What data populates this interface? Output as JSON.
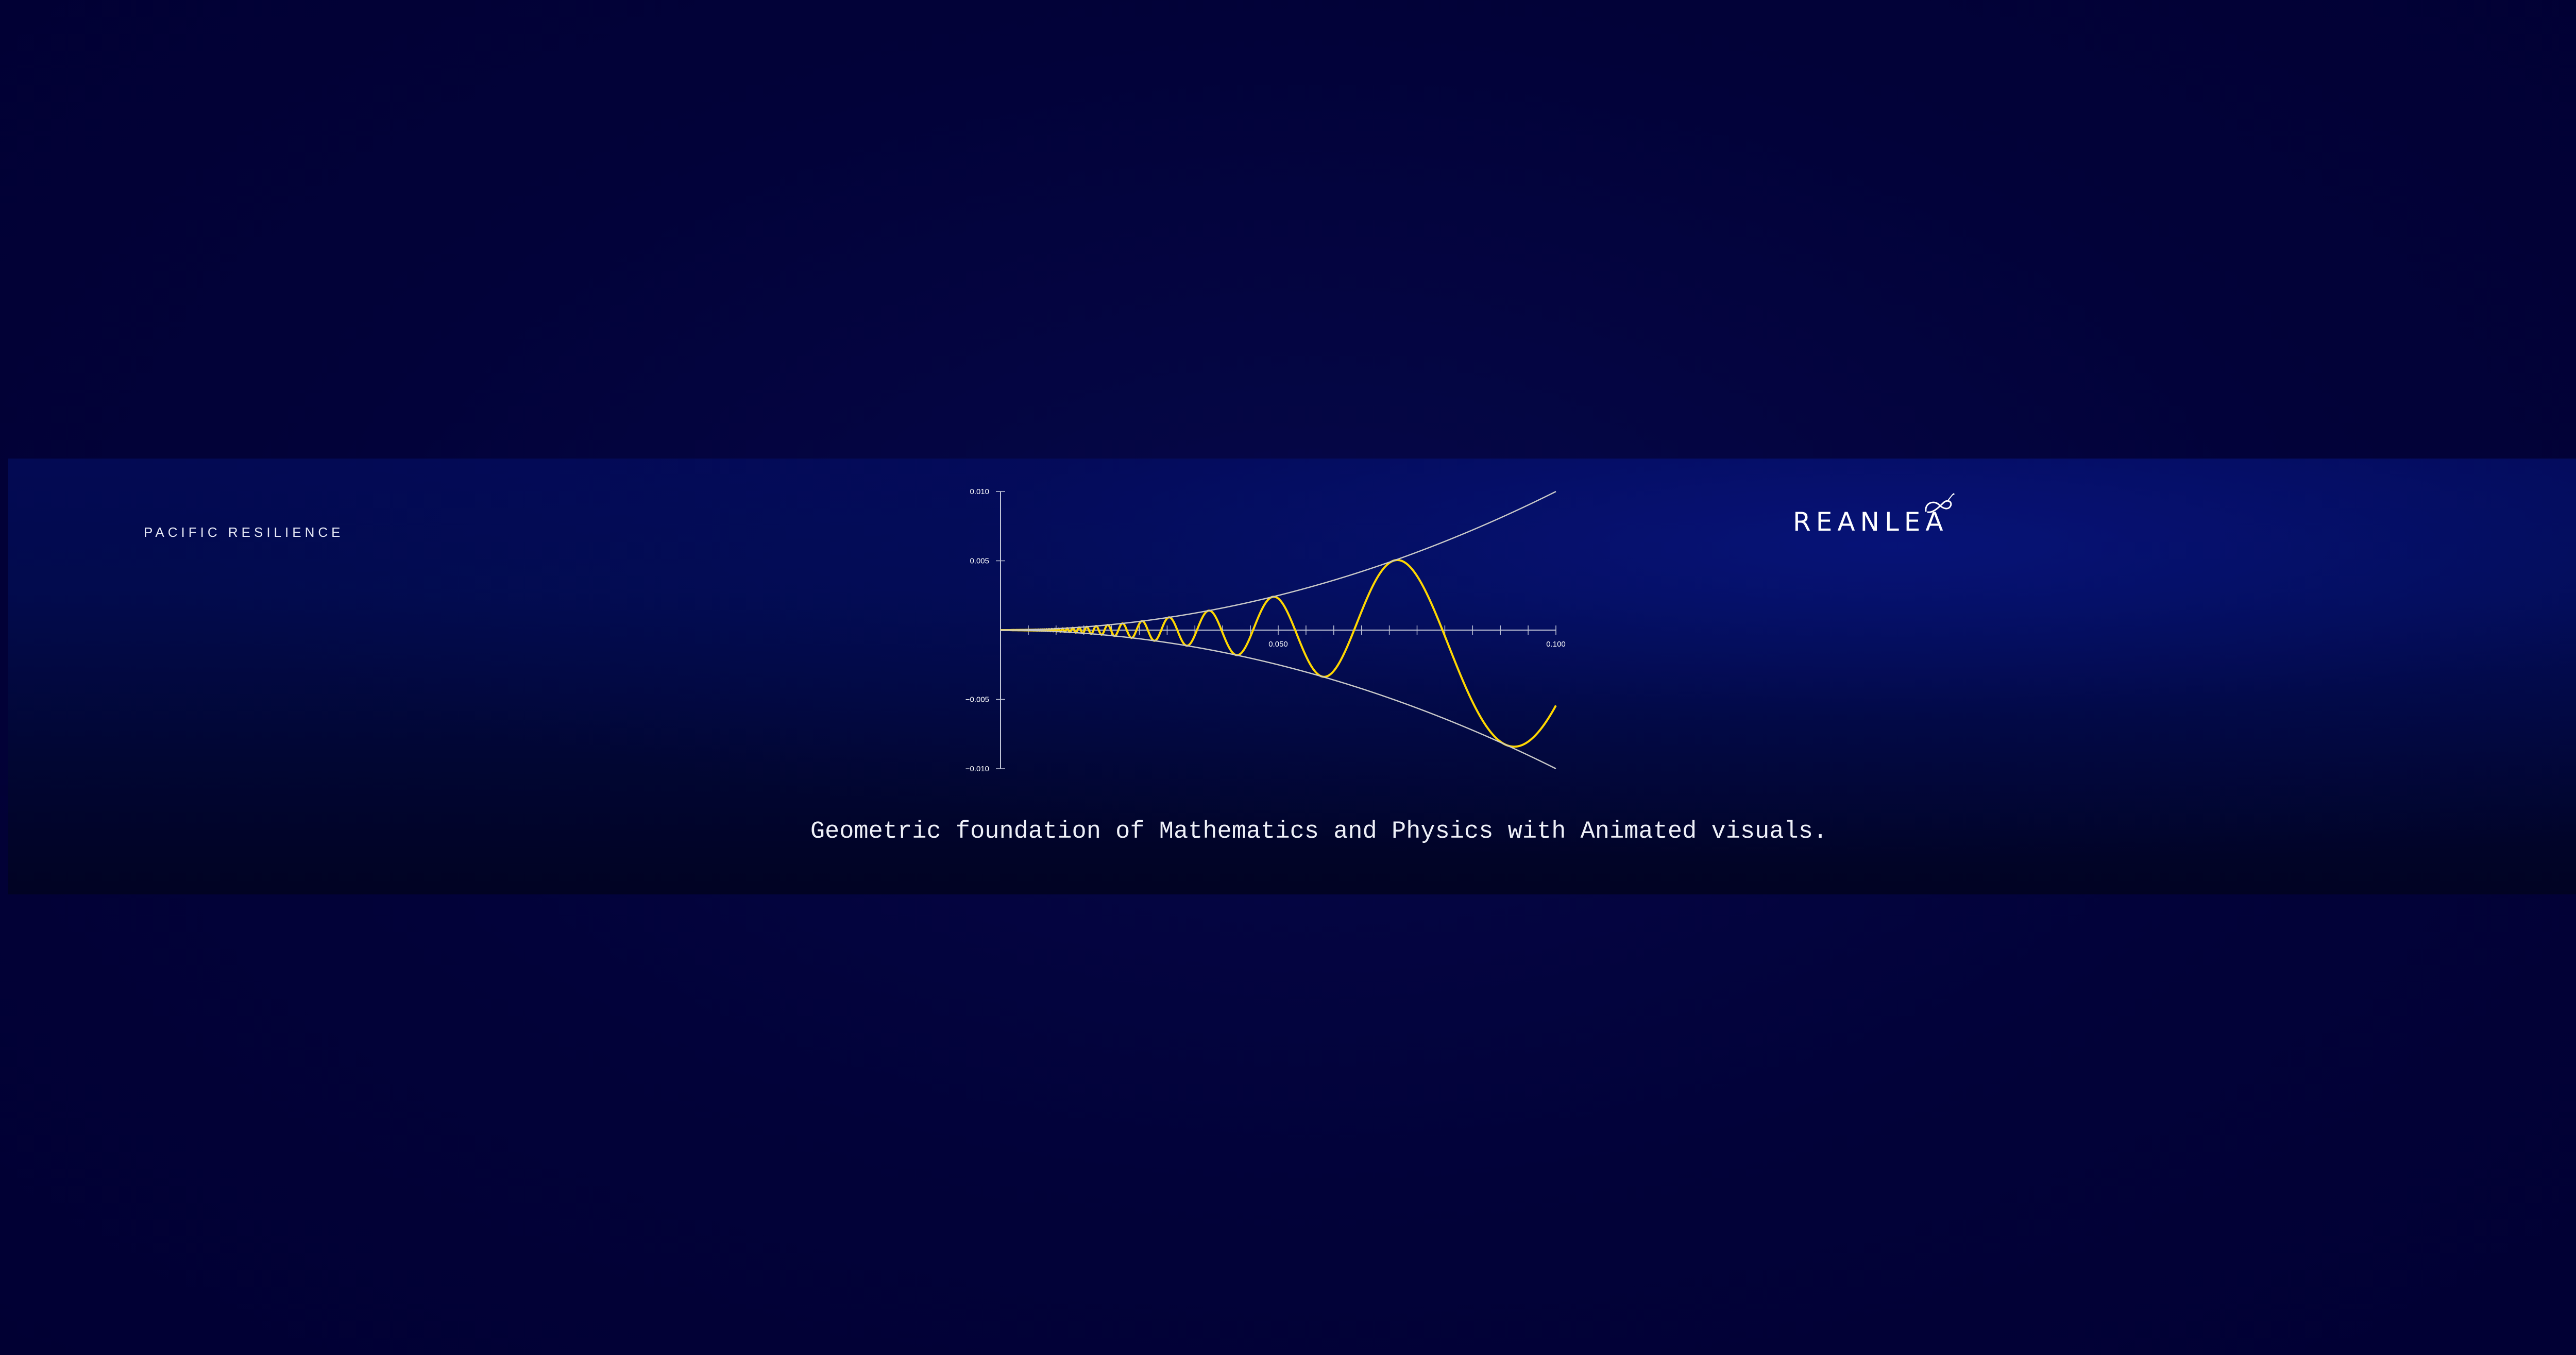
{
  "left_brand": "PACIFIC RESILIENCE",
  "right_brand": "REANLEA",
  "tagline": "Geometric foundation of Mathematics and Physics with Animated visuals.",
  "logo": {
    "icon": "reanlea-swirl-icon",
    "color": "#ffffff"
  },
  "colors": {
    "background": "#010033",
    "banner": "#020c50",
    "curve": "#ffd700",
    "envelope": "#c8c8c8",
    "text": "#ffffff"
  },
  "chart_data": {
    "type": "line",
    "title": "",
    "xlabel": "",
    "ylabel": "",
    "xlim": [
      0,
      0.1
    ],
    "ylim": [
      -0.01,
      0.01
    ],
    "x_ticks": [
      0.05,
      0.1
    ],
    "x_tick_labels": [
      "0.050",
      "0.100"
    ],
    "x_minor_tick_step": 0.005,
    "y_ticks": [
      0.01,
      0.005,
      -0.005,
      -0.01
    ],
    "y_tick_labels": [
      "0.010",
      "0.005",
      "−0.005",
      "−0.010"
    ],
    "grid": false,
    "legend": "none",
    "series": [
      {
        "function": "x^2 * sin(1/x)",
        "color": "#ffd700"
      },
      {
        "function": "x^2",
        "color": "#c8c8c8"
      },
      {
        "function": "-x^2",
        "color": "#c8c8c8"
      }
    ]
  }
}
